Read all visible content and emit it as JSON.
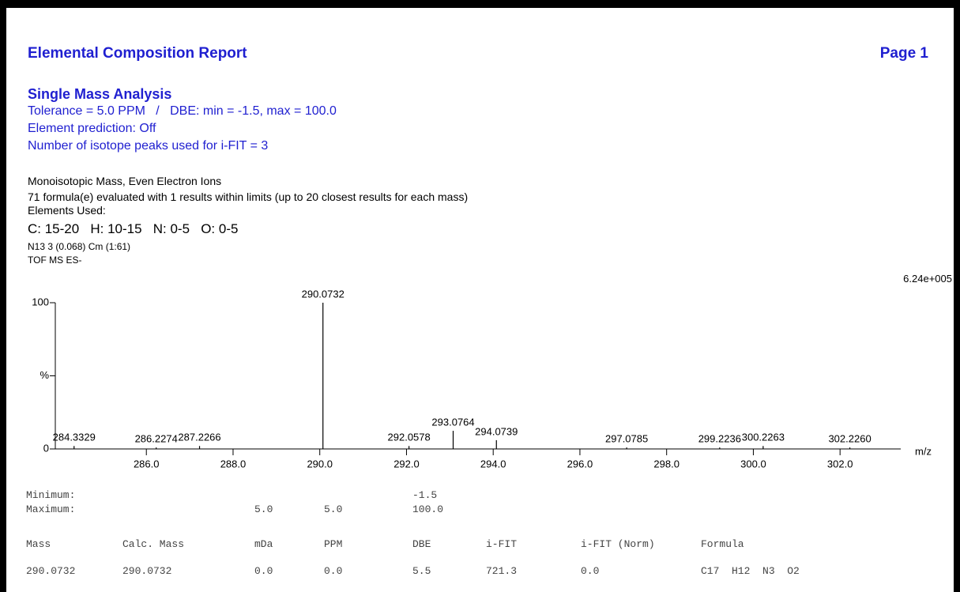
{
  "header": {
    "title": "Elemental Composition Report",
    "page": "Page 1"
  },
  "analysis": {
    "heading": "Single Mass Analysis",
    "lines": [
      "Tolerance = 5.0 PPM   /   DBE: min = -1.5, max = 100.0",
      "Element prediction: Off",
      "Number of isotope peaks used for i-FIT = 3"
    ]
  },
  "info": {
    "lines": [
      "Monoisotopic Mass, Even Electron Ions",
      "71 formula(e) evaluated with 1 results within limits (up to 20 closest results for each mass)",
      "Elements Used:"
    ],
    "elements": "C: 15-20   H: 10-15   N: 0-5   O: 0-5",
    "sample": [
      "N13 3 (0.068) Cm (1:61)",
      "TOF MS ES-"
    ]
  },
  "chart_data": {
    "type": "stick",
    "scale_label": "6.24e+005",
    "xlabel": "m/z",
    "x": [
      284.3329,
      286.2274,
      287.2266,
      290.0732,
      292.0578,
      293.0764,
      294.0739,
      297.0785,
      299.2236,
      300.2263,
      302.226
    ],
    "x_labels": [
      "284.3329",
      "286.2274",
      "287.2266",
      "290.0732",
      "292.0578",
      "293.0764",
      "294.0739",
      "297.0785",
      "299.2236",
      "300.2263",
      "302.2260"
    ],
    "values": [
      2,
      1,
      2,
      100,
      2,
      12.4,
      6,
      1,
      1,
      2,
      1
    ],
    "color": "#000000",
    "xlim": [
      283.9,
      303.4
    ],
    "ylim": [
      0,
      100
    ],
    "xticks": [
      {
        "value": 286,
        "label": "286.0"
      },
      {
        "value": 288,
        "label": "288.0"
      },
      {
        "value": 290,
        "label": "290.0"
      },
      {
        "value": 292,
        "label": "292.0"
      },
      {
        "value": 294,
        "label": "294.0"
      },
      {
        "value": 296,
        "label": "296.0"
      },
      {
        "value": 298,
        "label": "298.0"
      },
      {
        "value": 300,
        "label": "300.0"
      },
      {
        "value": 302,
        "label": "302.0"
      }
    ],
    "yticks": [
      0,
      {
        "value": 50,
        "label": "%"
      },
      100
    ]
  },
  "table": {
    "limits": [
      {
        "label": "Minimum:",
        "cells": {
          "4": "-1.5"
        }
      },
      {
        "label": "Maximum:",
        "cells": {
          "2": "5.0",
          "3": "5.0",
          "4": "100.0"
        }
      }
    ],
    "headers": [
      "Mass",
      "Calc. Mass",
      "mDa",
      "PPM",
      "DBE",
      "i-FIT",
      "i-FIT (Norm)",
      "Formula"
    ],
    "rows": [
      [
        "290.0732",
        "290.0732",
        "0.0",
        "0.0",
        "5.5",
        "721.3",
        "0.0",
        "C17  H12  N3  O2"
      ]
    ]
  }
}
